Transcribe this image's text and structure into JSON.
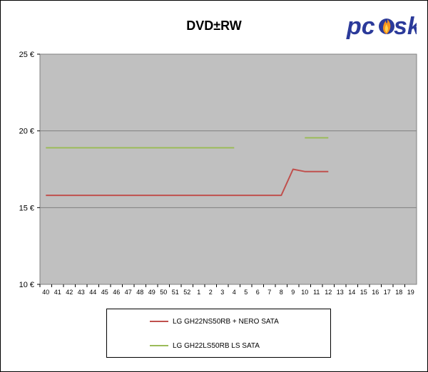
{
  "chart_data": {
    "type": "line",
    "title": "DVD±RW",
    "xlabel": "",
    "ylabel": "",
    "ylim": [
      10,
      25
    ],
    "yticks": [
      "10 €",
      "15 €",
      "20 €",
      "25 €"
    ],
    "ytick_values": [
      10,
      15,
      20,
      25
    ],
    "categories": [
      "40",
      "41",
      "42",
      "43",
      "44",
      "45",
      "46",
      "47",
      "48",
      "49",
      "50",
      "51",
      "52",
      "1",
      "2",
      "3",
      "4",
      "5",
      "6",
      "7",
      "8",
      "9",
      "10",
      "11",
      "12",
      "13",
      "14",
      "15",
      "16",
      "17",
      "18",
      "19"
    ],
    "grid": true,
    "legend_position": "bottom",
    "series": [
      {
        "name": "LG GH22NS50RB + NERO SATA",
        "color": "#c0504d",
        "values": [
          15.8,
          15.8,
          15.8,
          15.8,
          15.8,
          15.8,
          15.8,
          15.8,
          15.8,
          15.8,
          15.8,
          15.8,
          15.8,
          15.8,
          15.8,
          15.8,
          15.8,
          15.8,
          15.8,
          15.8,
          15.8,
          17.5,
          17.35,
          17.35,
          17.35,
          null,
          null,
          null,
          null,
          null,
          null,
          null
        ]
      },
      {
        "name": "LG GH22LS50RB LS SATA",
        "color": "#9bbb59",
        "values": [
          18.9,
          18.9,
          18.9,
          18.9,
          18.9,
          18.9,
          18.9,
          18.9,
          18.9,
          18.9,
          18.9,
          18.9,
          18.9,
          18.9,
          18.9,
          18.9,
          18.9,
          null,
          null,
          null,
          null,
          null,
          19.55,
          19.55,
          19.55,
          null,
          null,
          null,
          null,
          null,
          null,
          null
        ]
      }
    ]
  },
  "logo": {
    "text_left": "pc",
    "text_right": "sk",
    "colors": {
      "text": "#2b3a9a",
      "flame": "#f7941d"
    }
  },
  "colors": {
    "plot_bg": "#c0c0c0",
    "grid": "#808080"
  }
}
